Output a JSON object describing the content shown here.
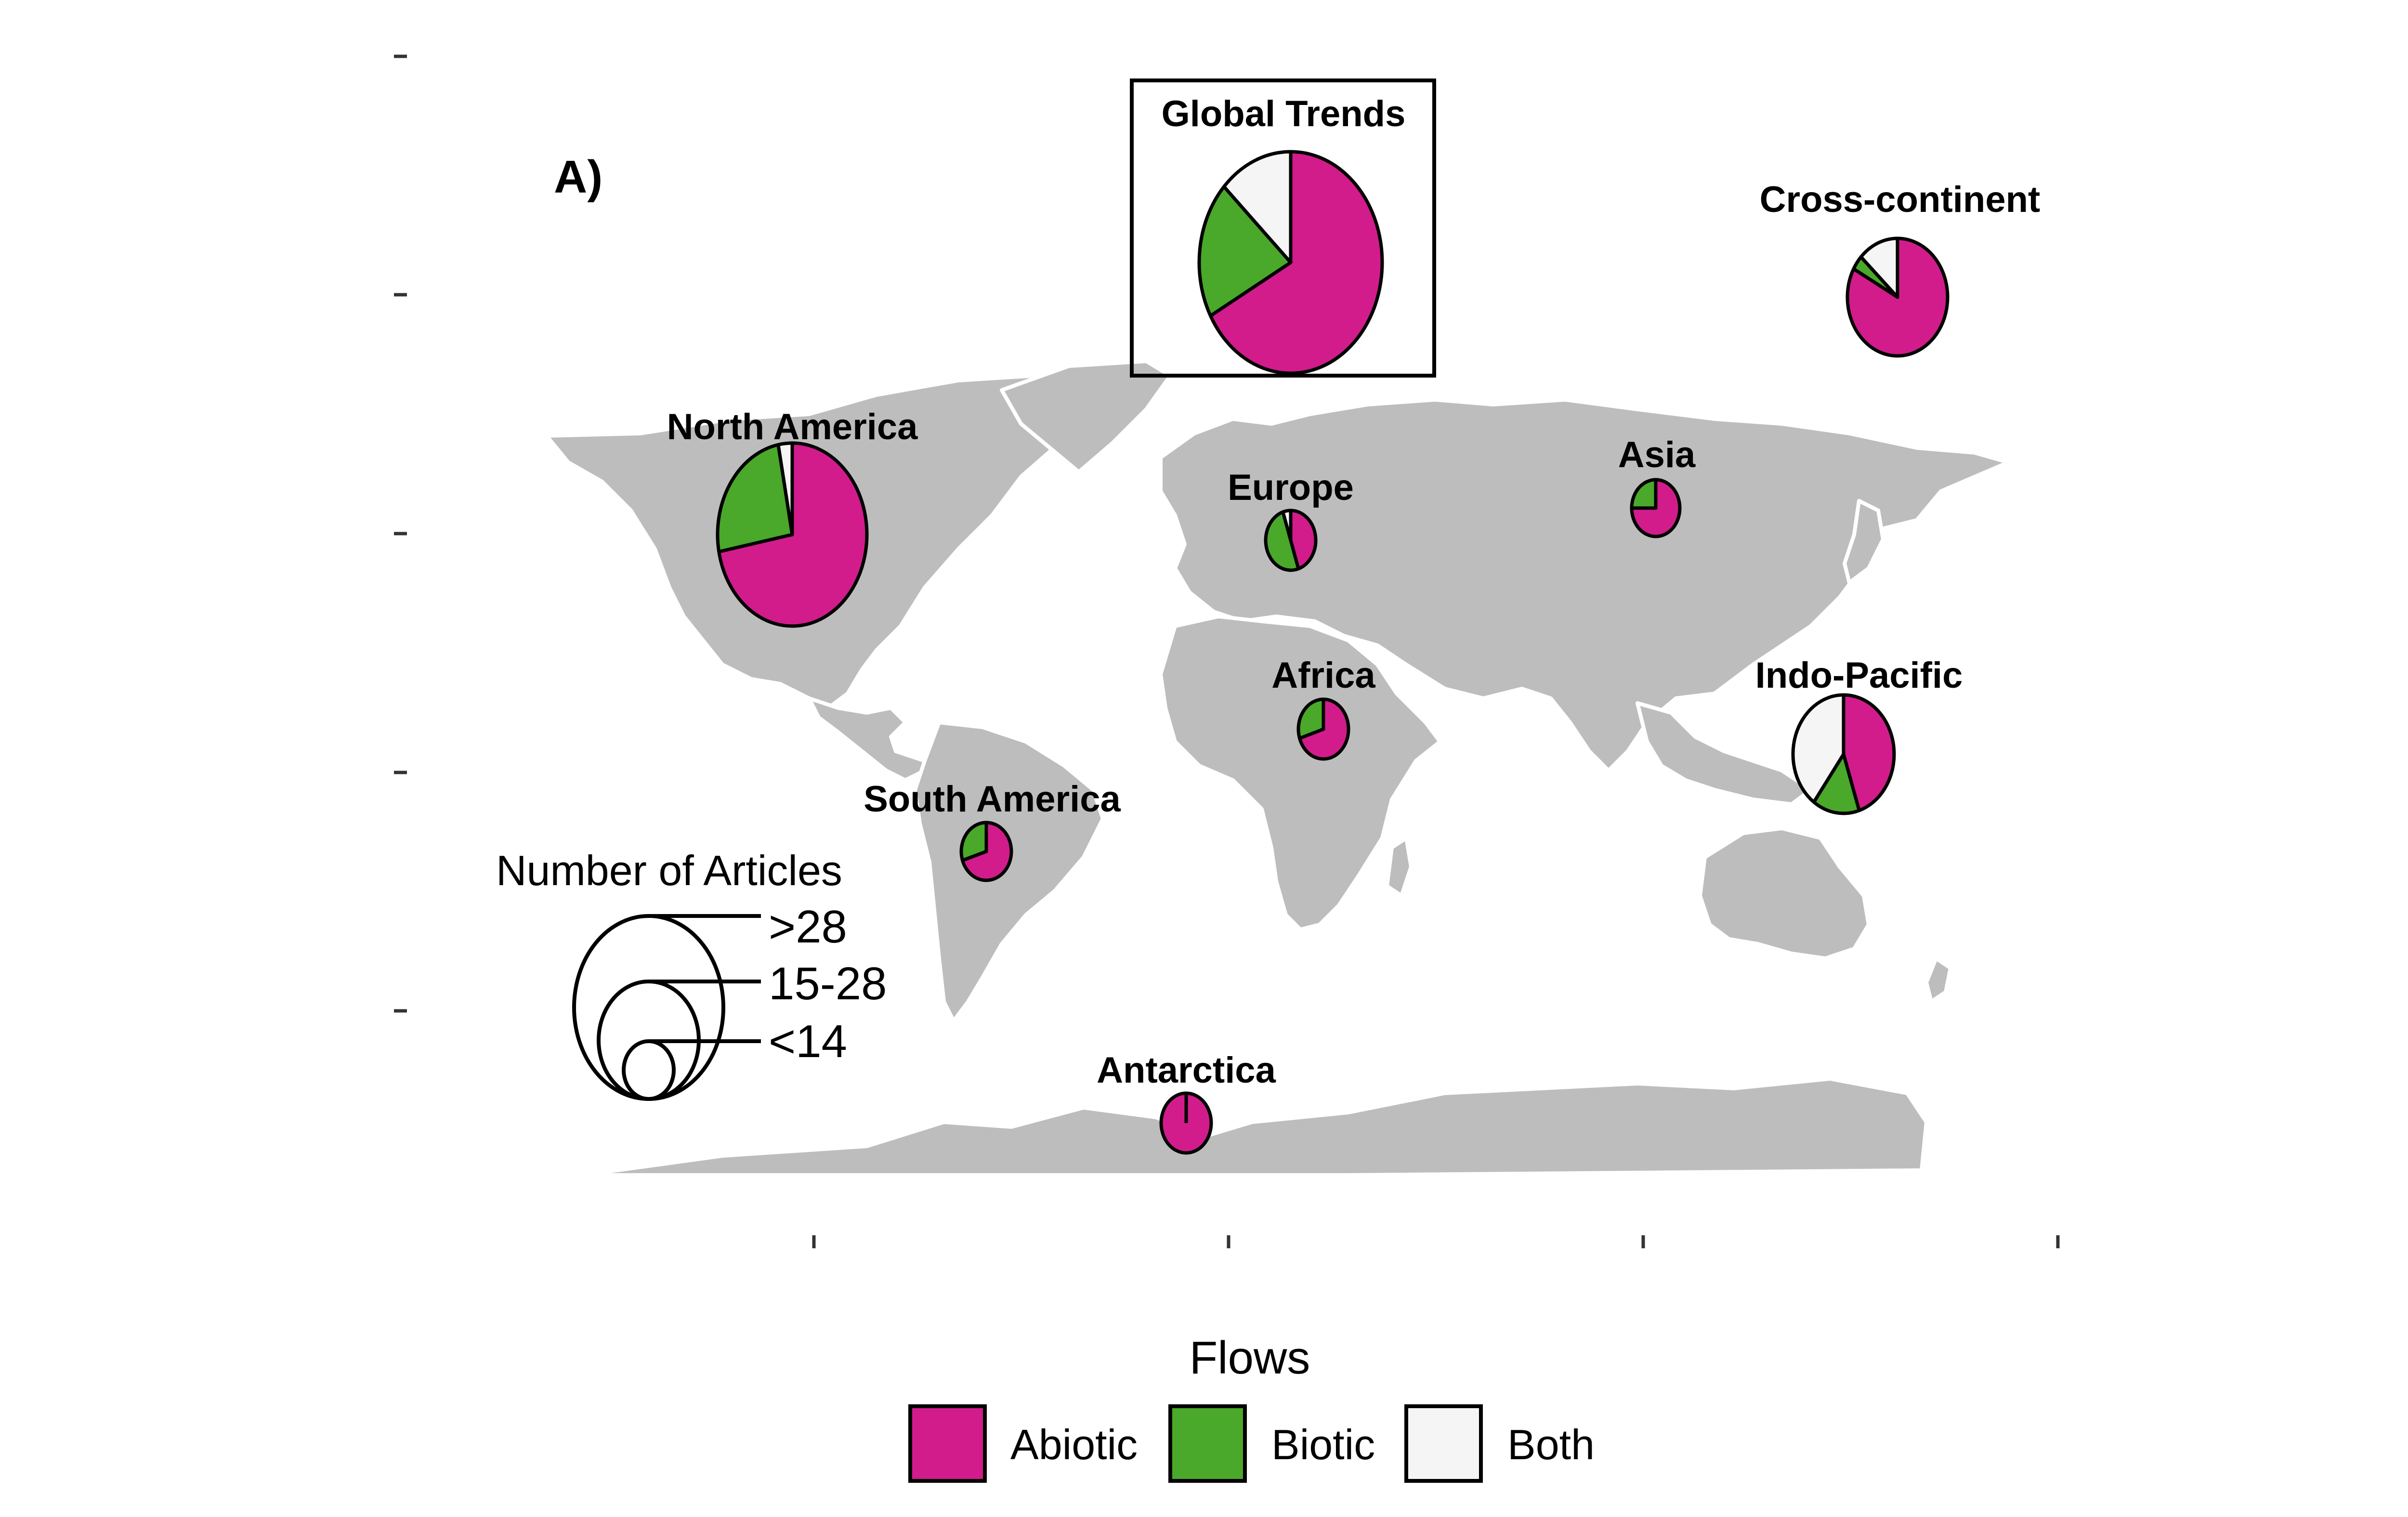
{
  "panel_label": "A)",
  "colors": {
    "abiotic": "#d21c8c",
    "biotic": "#4aa82a",
    "both": "#f5f5f5",
    "land": "#bdbdbd"
  },
  "regions": [
    {
      "id": "global",
      "name": "Global Trends",
      "abiotic": 0.67,
      "biotic": 0.2,
      "both": 0.13,
      "boxed": true
    },
    {
      "id": "cross-continent",
      "name": "Cross-continent",
      "abiotic": 0.83,
      "biotic": 0.04,
      "both": 0.13
    },
    {
      "id": "north-america",
      "name": "North America",
      "abiotic": 0.72,
      "biotic": 0.25,
      "both": 0.03
    },
    {
      "id": "europe",
      "name": "Europe",
      "abiotic": 0.45,
      "biotic": 0.5,
      "both": 0.05
    },
    {
      "id": "asia",
      "name": "Asia",
      "abiotic": 0.75,
      "biotic": 0.25,
      "both": 0.0
    },
    {
      "id": "africa",
      "name": "Africa",
      "abiotic": 0.7,
      "biotic": 0.3,
      "both": 0.0
    },
    {
      "id": "indo-pacific",
      "name": "Indo-Pacific",
      "abiotic": 0.45,
      "biotic": 0.15,
      "both": 0.4
    },
    {
      "id": "south-america",
      "name": "South America",
      "abiotic": 0.7,
      "biotic": 0.3,
      "both": 0.0
    },
    {
      "id": "antarctica",
      "name": "Antarctica",
      "abiotic": 1.0,
      "biotic": 0.0,
      "both": 0.0
    }
  ],
  "size_legend": {
    "title": "Number of Articles",
    "items": [
      ">28",
      "15-28",
      "<14"
    ]
  },
  "flow_legend": {
    "title": "Flows",
    "items": [
      {
        "key": "abiotic",
        "label": "Abiotic"
      },
      {
        "key": "biotic",
        "label": "Biotic"
      },
      {
        "key": "both",
        "label": "Both"
      }
    ]
  }
}
